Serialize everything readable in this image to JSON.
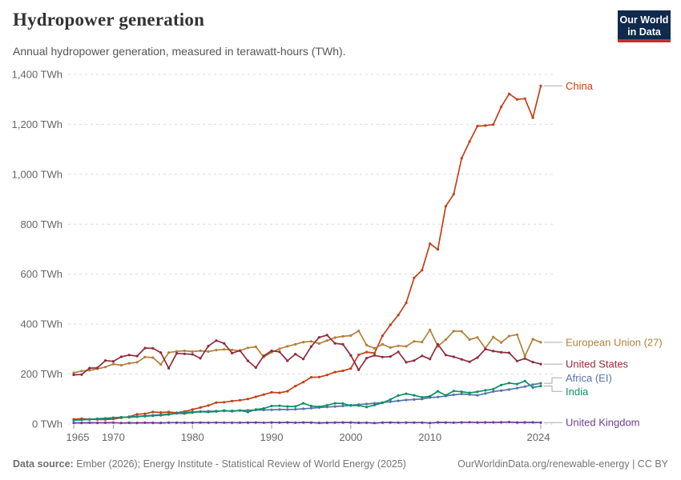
{
  "header": {
    "title": "Hydropower generation",
    "subtitle": "Annual hydropower generation, measured in terawatt-hours (TWh).",
    "logo": {
      "line1": "Our World",
      "line2": "in Data",
      "bg_color": "#10294D",
      "accent_color": "#C7302D"
    }
  },
  "footer": {
    "source_label": "Data source:",
    "source_text": " Ember (2026); Energy Institute - Statistical Review of World Energy (2025)",
    "right_text": "OurWorldinData.org/renewable-energy | CC BY"
  },
  "chart_data": {
    "type": "line",
    "title": "Hydropower generation",
    "unit": "TWh",
    "xlim": [
      1965,
      2024
    ],
    "ylim": [
      0,
      1400
    ],
    "x_ticks": [
      1965,
      1970,
      1980,
      1990,
      2000,
      2010,
      2024
    ],
    "y_ticks": [
      0,
      200,
      400,
      600,
      800,
      1000,
      1200,
      1400
    ],
    "grid": "horizontal dashed",
    "legend_position": "right-edge-labels",
    "years": {
      "start": 1965,
      "end": 2024
    },
    "series": [
      {
        "name": "China",
        "color": "#C2401A",
        "values": [
          19,
          21,
          19,
          18,
          18,
          20,
          25,
          29,
          39,
          41,
          48,
          46,
          48,
          45,
          50,
          58,
          66,
          74,
          86,
          87,
          92,
          95,
          100,
          109,
          118,
          127,
          125,
          131,
          152,
          168,
          187,
          188,
          196,
          208,
          213,
          222,
          277,
          288,
          284,
          353,
          397,
          436,
          485,
          585,
          616,
          722,
          699,
          872,
          920,
          1064,
          1131,
          1193,
          1195,
          1199,
          1270,
          1322,
          1300,
          1303,
          1226,
          1354
        ]
      },
      {
        "name": "European Union (27)",
        "color": "#B0813D",
        "values": [
          205,
          212,
          215,
          221,
          228,
          240,
          235,
          243,
          247,
          268,
          266,
          238,
          286,
          291,
          293,
          290,
          293,
          290,
          296,
          299,
          297,
          293,
          305,
          309,
          268,
          287,
          301,
          311,
          319,
          328,
          331,
          322,
          334,
          346,
          351,
          354,
          373,
          316,
          303,
          319,
          306,
          313,
          311,
          331,
          328,
          377,
          311,
          338,
          372,
          371,
          338,
          347,
          303,
          348,
          326,
          352,
          358,
          272,
          340,
          327
        ]
      },
      {
        "name": "United States",
        "color": "#8E2C3B",
        "values": [
          197,
          198,
          224,
          225,
          254,
          251,
          269,
          276,
          272,
          304,
          303,
          286,
          223,
          283,
          281,
          279,
          263,
          312,
          334,
          323,
          284,
          294,
          253,
          226,
          273,
          293,
          289,
          253,
          280,
          260,
          310,
          347,
          356,
          323,
          319,
          275,
          217,
          264,
          275,
          268,
          270,
          289,
          247,
          254,
          273,
          260,
          319,
          276,
          269,
          259,
          249,
          266,
          300,
          292,
          287,
          285,
          252,
          262,
          248,
          240
        ]
      },
      {
        "name": "Africa (EI)",
        "color": "#5674A8",
        "values": [
          15,
          17,
          19,
          21,
          23,
          25,
          27,
          28,
          30,
          33,
          35,
          37,
          40,
          43,
          46,
          48,
          50,
          51,
          52,
          52,
          53,
          54,
          55,
          56,
          56,
          57,
          58,
          58,
          59,
          61,
          63,
          66,
          68,
          70,
          72,
          75,
          78,
          80,
          83,
          86,
          89,
          93,
          96,
          98,
          100,
          106,
          108,
          112,
          117,
          120,
          118,
          115,
          122,
          130,
          134,
          138,
          144,
          150,
          158,
          163
        ]
      },
      {
        "name": "India",
        "color": "#0E9066",
        "values": [
          15,
          17,
          18,
          20,
          22,
          25,
          27,
          27,
          29,
          31,
          33,
          35,
          38,
          43,
          42,
          46,
          49,
          48,
          50,
          54,
          51,
          54,
          48,
          58,
          62,
          72,
          73,
          70,
          70,
          83,
          72,
          69,
          75,
          83,
          82,
          74,
          74,
          68,
          76,
          85,
          98,
          114,
          121,
          115,
          107,
          111,
          131,
          115,
          132,
          129,
          125,
          129,
          135,
          140,
          156,
          164,
          160,
          172,
          146,
          152
        ]
      },
      {
        "name": "United Kingdom",
        "color": "#6D3E91",
        "values": [
          4.6,
          4.5,
          5,
          4.7,
          5.2,
          5.4,
          4.1,
          4.9,
          4.6,
          5.2,
          4.9,
          4.6,
          5.3,
          5.3,
          5.2,
          5.1,
          5.7,
          5.5,
          5.9,
          5.5,
          5.4,
          5.3,
          5.8,
          6,
          5.6,
          6.1,
          5.8,
          6.3,
          5.5,
          6.1,
          5.8,
          4.4,
          5,
          5.9,
          6.2,
          6,
          4.9,
          5.6,
          3.9,
          5.8,
          6,
          5.5,
          5.9,
          5.9,
          5.9,
          4.2,
          6.5,
          6.1,
          5.4,
          6.4,
          7.1,
          6.1,
          6.5,
          6.3,
          6.6,
          7.6,
          6.2,
          6.5,
          6.4,
          5.8
        ]
      }
    ]
  }
}
